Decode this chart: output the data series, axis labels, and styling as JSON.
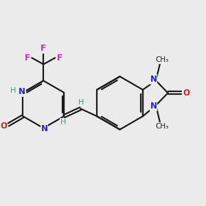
{
  "bg_color": "#ebebeb",
  "bond_color": "#1a1a1a",
  "N_color": "#2222cc",
  "O_color": "#cc2222",
  "F_color": "#cc22cc",
  "H_color": "#4a9090",
  "line_width": 1.6,
  "figsize": [
    3.0,
    3.0
  ],
  "dpi": 100,
  "xlim": [
    0,
    10
  ],
  "ylim": [
    0,
    10
  ]
}
